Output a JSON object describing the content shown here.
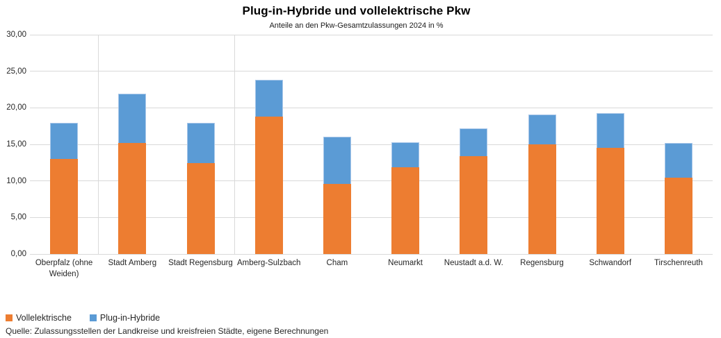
{
  "chart_data": {
    "type": "bar",
    "stacked": true,
    "title": "Plug-in-Hybride und vollelektrische Pkw",
    "subtitle": "Anteile an den Pkw-Gesamtzulassungen 2024 in %",
    "categories": [
      "Oberpfalz (ohne Weiden)",
      "Stadt Amberg",
      "Stadt Regensburg",
      "Amberg-Sulzbach",
      "Cham",
      "Neumarkt",
      "Neustadt a.d. W.",
      "Regensburg",
      "Schwandorf",
      "Tirschenreuth"
    ],
    "series": [
      {
        "name": "Vollelektrische",
        "color": "#ED7D31",
        "values": [
          13.0,
          15.2,
          12.4,
          18.8,
          9.6,
          11.9,
          13.4,
          15.0,
          14.5,
          10.4
        ]
      },
      {
        "name": "Plug-in-Hybride",
        "color": "#5B9BD5",
        "values": [
          4.9,
          6.7,
          5.5,
          5.0,
          6.4,
          3.4,
          3.8,
          4.1,
          4.8,
          4.8
        ]
      }
    ],
    "totals": [
      17.9,
      21.9,
      17.9,
      23.8,
      16.0,
      15.3,
      17.2,
      19.1,
      19.3,
      15.2
    ],
    "xlabel": "",
    "ylabel": "",
    "ylim": [
      0,
      30
    ],
    "ytick_step": 5,
    "ytick_labels": [
      "0,00",
      "5,00",
      "10,00",
      "15,00",
      "20,00",
      "25,00",
      "30,00"
    ],
    "grid": true,
    "gridline_color": "#D9D9D9",
    "legend_position": "bottom-left",
    "separators_after_category_index": [
      0,
      2
    ],
    "source": "Quelle: Zulassungsstellen der Landkreise und kreisfreien Städte, eigene Berechnungen"
  }
}
